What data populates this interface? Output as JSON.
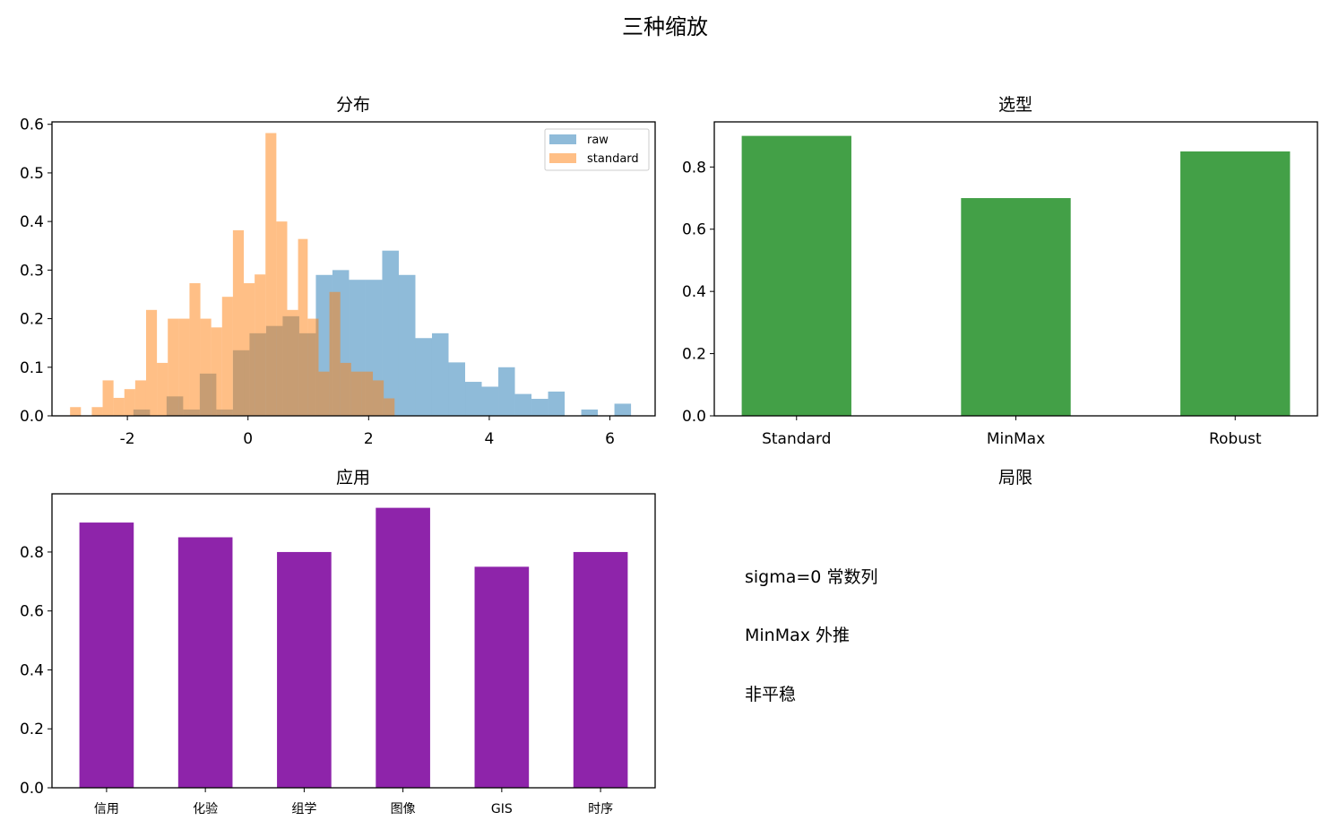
{
  "figure": {
    "title": "三种缩放"
  },
  "panels": {
    "distribution": {
      "title": "分布",
      "legend": {
        "position": "upper right",
        "entries": [
          {
            "label": "raw",
            "color": "#1f77b4"
          },
          {
            "label": "standard",
            "color": "#ff7f0e"
          }
        ]
      }
    },
    "selection": {
      "title": "选型"
    },
    "application": {
      "title": "应用"
    },
    "limitations": {
      "title": "局限",
      "notes": [
        "sigma=0 常数列",
        "MinMax 外推",
        "非平稳"
      ]
    }
  },
  "chart_data": [
    {
      "type": "bar",
      "title": "分布",
      "xlabel": "",
      "ylabel": "",
      "xlim": [
        -3.25,
        6.75
      ],
      "ylim": [
        0,
        0.605
      ],
      "xticks": [
        -2,
        0,
        2,
        4,
        6
      ],
      "yticks": [
        0.0,
        0.1,
        0.2,
        0.3,
        0.4,
        0.5,
        0.6
      ],
      "histogram": true,
      "alpha": 0.5,
      "legend": "upper right",
      "series": [
        {
          "name": "raw",
          "color": "#1f77b4",
          "bin_edges": [
            -1.9,
            -1.625,
            -1.35,
            -1.075,
            -0.8,
            -0.525,
            -0.25,
            0.025,
            0.3,
            0.575,
            0.85,
            1.125,
            1.4,
            1.675,
            1.95,
            2.225,
            2.5,
            2.775,
            3.05,
            3.325,
            3.6,
            3.875,
            4.15,
            4.425,
            4.7,
            4.975,
            5.25,
            5.525,
            5.8,
            6.075,
            6.35
          ],
          "counts_density": [
            0.013,
            0.0,
            0.04,
            0.013,
            0.087,
            0.013,
            0.135,
            0.17,
            0.185,
            0.205,
            0.17,
            0.29,
            0.3,
            0.28,
            0.28,
            0.34,
            0.29,
            0.16,
            0.17,
            0.11,
            0.07,
            0.06,
            0.1,
            0.045,
            0.035,
            0.05,
            0.0,
            0.013,
            0.0,
            0.025
          ]
        },
        {
          "name": "standard",
          "color": "#ff7f0e",
          "bin_edges": [
            -2.95,
            -2.77,
            -2.59,
            -2.41,
            -2.23,
            -2.05,
            -1.87,
            -1.69,
            -1.51,
            -1.33,
            -1.15,
            -0.97,
            -0.79,
            -0.61,
            -0.43,
            -0.25,
            -0.07,
            0.11,
            0.29,
            0.47,
            0.65,
            0.83,
            0.99,
            1.17,
            1.35,
            1.53,
            1.71,
            1.89,
            2.07,
            2.25,
            2.43
          ],
          "counts_density": [
            0.018,
            0.0,
            0.018,
            0.073,
            0.037,
            0.055,
            0.073,
            0.218,
            0.109,
            0.2,
            0.2,
            0.273,
            0.2,
            0.182,
            0.245,
            0.382,
            0.273,
            0.291,
            0.582,
            0.4,
            0.218,
            0.364,
            0.2,
            0.091,
            0.255,
            0.109,
            0.091,
            0.091,
            0.073,
            0.036
          ]
        }
      ]
    },
    {
      "type": "bar",
      "title": "选型",
      "categories": [
        "Standard",
        "MinMax",
        "Robust"
      ],
      "values": [
        0.9,
        0.7,
        0.85
      ],
      "color": "#43a047",
      "ylim": [
        0,
        0.945
      ],
      "yticks": [
        0.0,
        0.2,
        0.4,
        0.6,
        0.8
      ]
    },
    {
      "type": "bar",
      "title": "应用",
      "categories": [
        "信用",
        "化验",
        "组学",
        "图像",
        "GIS",
        "时序"
      ],
      "values": [
        0.9,
        0.85,
        0.8,
        0.95,
        0.75,
        0.8
      ],
      "color": "#8e24aa",
      "ylim": [
        0,
        0.9975
      ],
      "yticks": [
        0.0,
        0.2,
        0.4,
        0.6,
        0.8
      ]
    }
  ]
}
